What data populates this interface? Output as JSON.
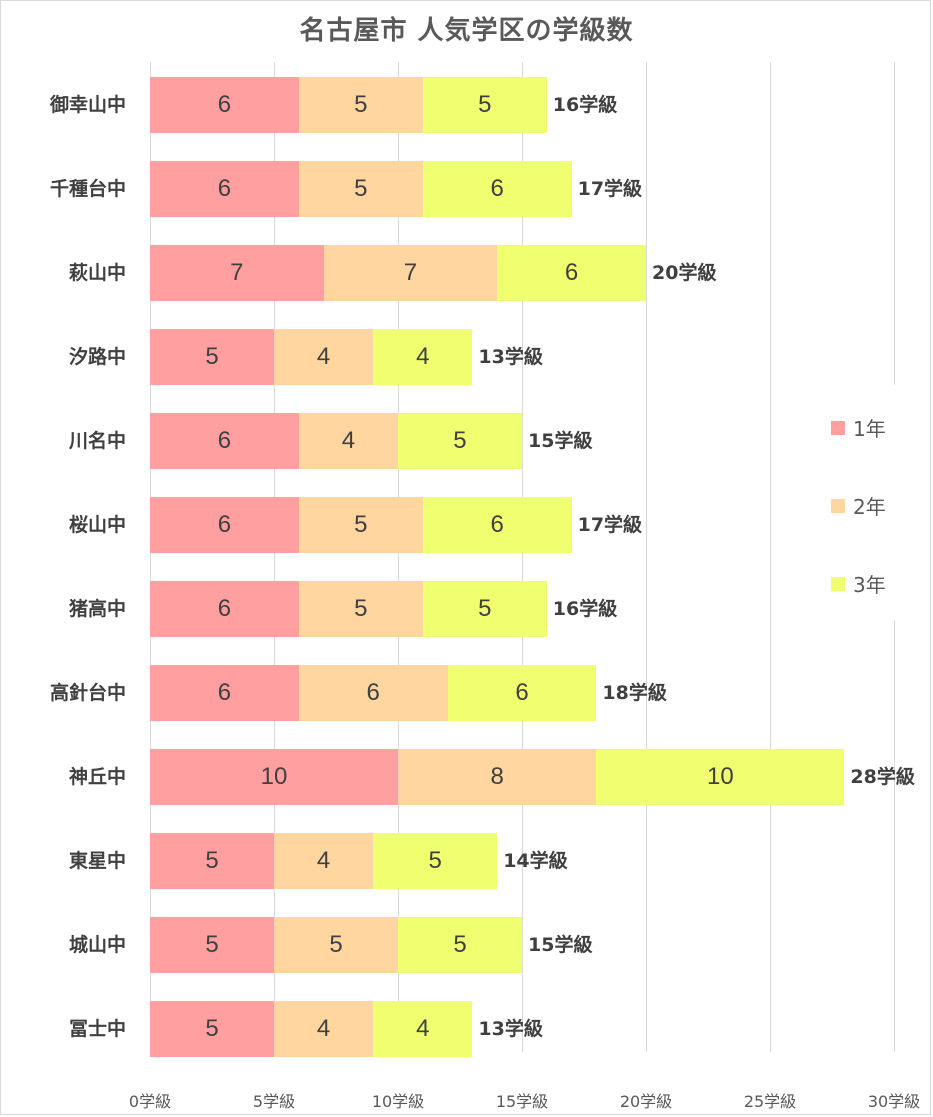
{
  "chart_data": {
    "type": "bar",
    "orientation": "horizontal",
    "stacked": true,
    "title": "名古屋市 人気学区の学級数",
    "xlabel": "",
    "ylabel": "",
    "xlim": [
      0,
      30
    ],
    "x_ticks": [
      "0学級",
      "5学級",
      "10学級",
      "15学級",
      "20学級",
      "25学級",
      "30学級"
    ],
    "grid": true,
    "legend_position": "right",
    "categories": [
      "御幸山中",
      "千種台中",
      "萩山中",
      "汐路中",
      "川名中",
      "桜山中",
      "猪高中",
      "高針台中",
      "神丘中",
      "東星中",
      "城山中",
      "冨士中"
    ],
    "series": [
      {
        "name": "1年",
        "color": "#ff9f9f",
        "values": [
          6,
          6,
          7,
          5,
          6,
          6,
          6,
          6,
          10,
          5,
          5,
          5
        ]
      },
      {
        "name": "2年",
        "color": "#ffd5a0",
        "values": [
          5,
          5,
          7,
          4,
          4,
          5,
          5,
          6,
          8,
          4,
          5,
          4
        ]
      },
      {
        "name": "3年",
        "color": "#efff6f",
        "values": [
          5,
          6,
          6,
          4,
          5,
          6,
          5,
          6,
          10,
          5,
          5,
          4
        ]
      }
    ],
    "totals": [
      16,
      17,
      20,
      13,
      15,
      17,
      16,
      18,
      28,
      14,
      15,
      13
    ],
    "total_labels": [
      "16学級",
      "17学級",
      "20学級",
      "13学級",
      "15学級",
      "17学級",
      "16学級",
      "18学級",
      "28学級",
      "14学級",
      "15学級",
      "13学級"
    ]
  }
}
